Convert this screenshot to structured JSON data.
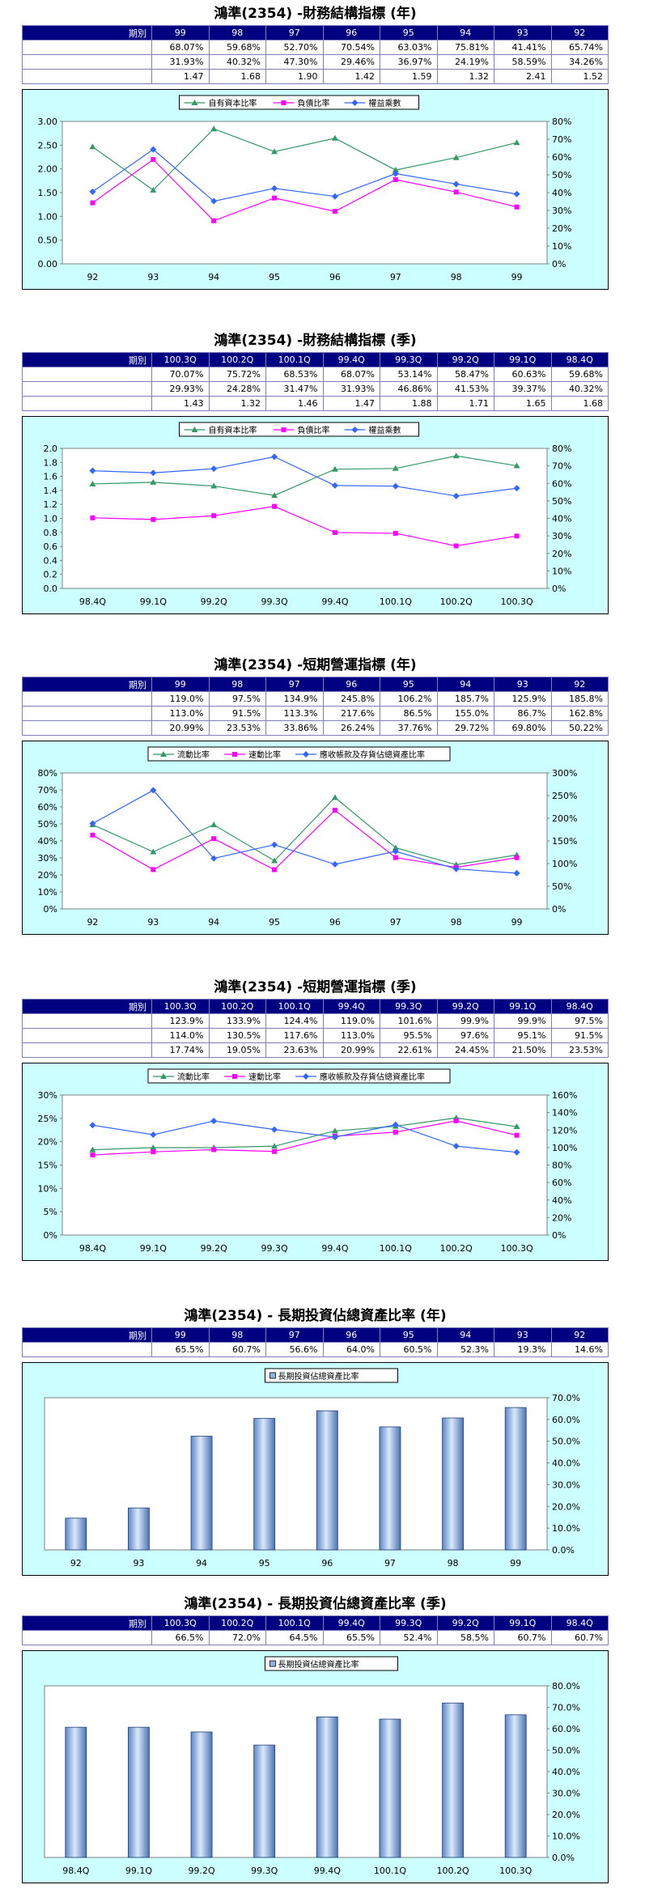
{
  "sections": [
    {
      "title": "鴻準(2354) -財務結構指標 (年)",
      "headers": [
        "期別",
        "99",
        "98",
        "97",
        "96",
        "95",
        "94",
        "93",
        "92"
      ],
      "rows": [
        {
          "label": "自有資本比率",
          "values": [
            "68.07%",
            "59.68%",
            "52.70%",
            "70.54%",
            "63.03%",
            "75.81%",
            "41.41%",
            "65.74%"
          ]
        },
        {
          "label": "負債比率",
          "values": [
            "31.93%",
            "40.32%",
            "47.30%",
            "29.46%",
            "36.97%",
            "24.19%",
            "58.59%",
            "34.26%"
          ]
        },
        {
          "label": "權益乘數",
          "values": [
            "1.47",
            "1.68",
            "1.90",
            "1.42",
            "1.59",
            "1.32",
            "2.41",
            "1.52"
          ]
        }
      ],
      "chart_data": {
        "type": "line",
        "categories": [
          "92",
          "93",
          "94",
          "95",
          "96",
          "97",
          "98",
          "99"
        ],
        "series": [
          {
            "name": "自有資本比率",
            "axis": "right",
            "color": "#339966",
            "marker": "triangle",
            "values": [
              65.74,
              41.41,
              75.81,
              63.03,
              70.54,
              52.7,
              59.68,
              68.07
            ]
          },
          {
            "name": "負債比率",
            "axis": "right",
            "color": "#ff00ff",
            "marker": "square",
            "values": [
              34.26,
              58.59,
              24.19,
              36.97,
              29.46,
              47.3,
              40.32,
              31.93
            ]
          },
          {
            "name": "權益乘數",
            "axis": "left",
            "color": "#3366ff",
            "marker": "diamond",
            "values": [
              1.52,
              2.41,
              1.32,
              1.59,
              1.42,
              1.9,
              1.68,
              1.47
            ]
          }
        ],
        "left_axis": {
          "min": 0,
          "max": 3,
          "step": 0.5,
          "decimals": 2,
          "suffix": ""
        },
        "right_axis": {
          "min": 0,
          "max": 80,
          "step": 10,
          "decimals": 0,
          "suffix": "%"
        },
        "legend": "top",
        "grid": false
      }
    },
    {
      "title": "鴻準(2354) -財務結構指標 (季)",
      "headers": [
        "期別",
        "100.3Q",
        "100.2Q",
        "100.1Q",
        "99.4Q",
        "99.3Q",
        "99.2Q",
        "99.1Q",
        "98.4Q"
      ],
      "rows": [
        {
          "label": "自有資本比率",
          "values": [
            "70.07%",
            "75.72%",
            "68.53%",
            "68.07%",
            "53.14%",
            "58.47%",
            "60.63%",
            "59.68%"
          ]
        },
        {
          "label": "負債比率",
          "values": [
            "29.93%",
            "24.28%",
            "31.47%",
            "31.93%",
            "46.86%",
            "41.53%",
            "39.37%",
            "40.32%"
          ]
        },
        {
          "label": "權益乘數",
          "values": [
            "1.43",
            "1.32",
            "1.46",
            "1.47",
            "1.88",
            "1.71",
            "1.65",
            "1.68"
          ]
        }
      ],
      "chart_data": {
        "type": "line",
        "categories": [
          "98.4Q",
          "99.1Q",
          "99.2Q",
          "99.3Q",
          "99.4Q",
          "100.1Q",
          "100.2Q",
          "100.3Q"
        ],
        "series": [
          {
            "name": "自有資本比率",
            "axis": "right",
            "color": "#339966",
            "marker": "triangle",
            "values": [
              59.68,
              60.63,
              58.47,
              53.14,
              68.07,
              68.53,
              75.72,
              70.07
            ]
          },
          {
            "name": "負債比率",
            "axis": "right",
            "color": "#ff00ff",
            "marker": "square",
            "values": [
              40.32,
              39.37,
              41.53,
              46.86,
              31.93,
              31.47,
              24.28,
              29.93
            ]
          },
          {
            "name": "權益乘數",
            "axis": "left",
            "color": "#3366ff",
            "marker": "diamond",
            "values": [
              1.68,
              1.65,
              1.71,
              1.88,
              1.47,
              1.46,
              1.32,
              1.43
            ]
          }
        ],
        "left_axis": {
          "min": 0,
          "max": 2,
          "step": 0.2,
          "decimals": 1,
          "suffix": ""
        },
        "right_axis": {
          "min": 0,
          "max": 80,
          "step": 10,
          "decimals": 0,
          "suffix": "%"
        },
        "legend": "top",
        "grid": false
      }
    },
    {
      "title": "鴻準(2354) -短期營運指標 (年)",
      "headers": [
        "期別",
        "99",
        "98",
        "97",
        "96",
        "95",
        "94",
        "93",
        "92"
      ],
      "rows": [
        {
          "label": "流動比率",
          "values": [
            "119.0%",
            "97.5%",
            "134.9%",
            "245.8%",
            "106.2%",
            "185.7%",
            "125.9%",
            "185.8%"
          ]
        },
        {
          "label": "速動比率",
          "values": [
            "113.0%",
            "91.5%",
            "113.3%",
            "217.6%",
            "86.5%",
            "155.0%",
            "86.7%",
            "162.8%"
          ]
        },
        {
          "label": "應收帳款及存貨佔總資產比率",
          "values": [
            "20.99%",
            "23.53%",
            "33.86%",
            "26.24%",
            "37.76%",
            "29.72%",
            "69.80%",
            "50.22%"
          ]
        }
      ],
      "chart_data": {
        "type": "line",
        "categories": [
          "92",
          "93",
          "94",
          "95",
          "96",
          "97",
          "98",
          "99"
        ],
        "series": [
          {
            "name": "流動比率",
            "axis": "right",
            "color": "#339966",
            "marker": "triangle",
            "values": [
              185.8,
              125.9,
              185.7,
              106.2,
              245.8,
              134.9,
              97.5,
              119.0
            ]
          },
          {
            "name": "速動比率",
            "axis": "right",
            "color": "#ff00ff",
            "marker": "square",
            "values": [
              162.8,
              86.7,
              155.0,
              86.5,
              217.6,
              113.3,
              91.5,
              113.0
            ]
          },
          {
            "name": "應收帳款及存貨佔總資產比率",
            "axis": "left",
            "color": "#3366ff",
            "marker": "diamond",
            "values": [
              50.22,
              69.8,
              29.72,
              37.76,
              26.24,
              33.86,
              23.53,
              20.99
            ]
          }
        ],
        "left_axis": {
          "min": 0,
          "max": 80,
          "step": 10,
          "decimals": 0,
          "suffix": "%"
        },
        "right_axis": {
          "min": 0,
          "max": 300,
          "step": 50,
          "decimals": 0,
          "suffix": "%"
        },
        "legend": "top",
        "grid": false
      }
    },
    {
      "title": "鴻準(2354) -短期營運指標 (季)",
      "headers": [
        "期別",
        "100.3Q",
        "100.2Q",
        "100.1Q",
        "99.4Q",
        "99.3Q",
        "99.2Q",
        "99.1Q",
        "98.4Q"
      ],
      "rows": [
        {
          "label": "流動比率",
          "values": [
            "123.9%",
            "133.9%",
            "124.4%",
            "119.0%",
            "101.6%",
            "99.9%",
            "99.9%",
            "97.5%"
          ]
        },
        {
          "label": "速動比率",
          "values": [
            "114.0%",
            "130.5%",
            "117.6%",
            "113.0%",
            "95.5%",
            "97.6%",
            "95.1%",
            "91.5%"
          ]
        },
        {
          "label": "應收帳款及存貨佔總資產比率",
          "values": [
            "17.74%",
            "19.05%",
            "23.63%",
            "20.99%",
            "22.61%",
            "24.45%",
            "21.50%",
            "23.53%"
          ]
        }
      ],
      "chart_data": {
        "type": "line",
        "categories": [
          "98.4Q",
          "99.1Q",
          "99.2Q",
          "99.3Q",
          "99.4Q",
          "100.1Q",
          "100.2Q",
          "100.3Q"
        ],
        "series": [
          {
            "name": "流動比率",
            "axis": "right",
            "color": "#339966",
            "marker": "triangle",
            "values": [
              97.5,
              99.9,
              99.9,
              101.6,
              119.0,
              124.4,
              133.9,
              123.9
            ]
          },
          {
            "name": "速動比率",
            "axis": "right",
            "color": "#ff00ff",
            "marker": "square",
            "values": [
              91.5,
              95.1,
              97.6,
              95.5,
              113.0,
              117.6,
              130.5,
              114.0
            ]
          },
          {
            "name": "應收帳款及存貨佔總資產比率",
            "axis": "left",
            "color": "#3366ff",
            "marker": "diamond",
            "values": [
              23.53,
              21.5,
              24.45,
              22.61,
              20.99,
              23.63,
              19.05,
              17.74
            ]
          }
        ],
        "left_axis": {
          "min": 0,
          "max": 30,
          "step": 5,
          "decimals": 0,
          "suffix": "%"
        },
        "right_axis": {
          "min": 0,
          "max": 160,
          "step": 20,
          "decimals": 0,
          "suffix": "%"
        },
        "legend": "top",
        "grid": false
      }
    },
    {
      "title": "鴻準(2354) - 長期投資佔總資產比率 (年)",
      "headers": [
        "期別",
        "99",
        "98",
        "97",
        "96",
        "95",
        "94",
        "93",
        "92"
      ],
      "rows": [
        {
          "label": "長期投資佔總資產比率",
          "values": [
            "65.5%",
            "60.7%",
            "56.6%",
            "64.0%",
            "60.5%",
            "52.3%",
            "19.3%",
            "14.6%"
          ]
        }
      ],
      "chart_data": {
        "type": "bar",
        "categories": [
          "92",
          "93",
          "94",
          "95",
          "96",
          "97",
          "98",
          "99"
        ],
        "series": [
          {
            "name": "長期投資佔總資產比率",
            "axis": "right",
            "color": "#8eb4e3",
            "values": [
              14.6,
              19.3,
              52.3,
              60.5,
              64.0,
              56.6,
              60.7,
              65.5
            ]
          }
        ],
        "right_axis": {
          "min": 0,
          "max": 70,
          "step": 10,
          "decimals": 1,
          "suffix": "%"
        },
        "legend": "top",
        "grid": false
      }
    },
    {
      "title": "鴻準(2354) - 長期投資佔總資產比率 (季)",
      "headers": [
        "期別",
        "100.3Q",
        "100.2Q",
        "100.1Q",
        "99.4Q",
        "99.3Q",
        "99.2Q",
        "99.1Q",
        "98.4Q"
      ],
      "rows": [
        {
          "label": "長期投資佔總資產比率",
          "values": [
            "66.5%",
            "72.0%",
            "64.5%",
            "65.5%",
            "52.4%",
            "58.5%",
            "60.7%",
            "60.7%"
          ]
        }
      ],
      "chart_data": {
        "type": "bar",
        "categories": [
          "98.4Q",
          "99.1Q",
          "99.2Q",
          "99.3Q",
          "99.4Q",
          "100.1Q",
          "100.2Q",
          "100.3Q"
        ],
        "series": [
          {
            "name": "長期投資佔總資產比率",
            "axis": "right",
            "color": "#8eb4e3",
            "values": [
              60.7,
              60.7,
              58.5,
              52.4,
              65.5,
              64.5,
              72.0,
              66.5
            ]
          }
        ],
        "right_axis": {
          "min": 0,
          "max": 80,
          "step": 10,
          "decimals": 1,
          "suffix": "%"
        },
        "legend": "top",
        "grid": false
      }
    }
  ]
}
